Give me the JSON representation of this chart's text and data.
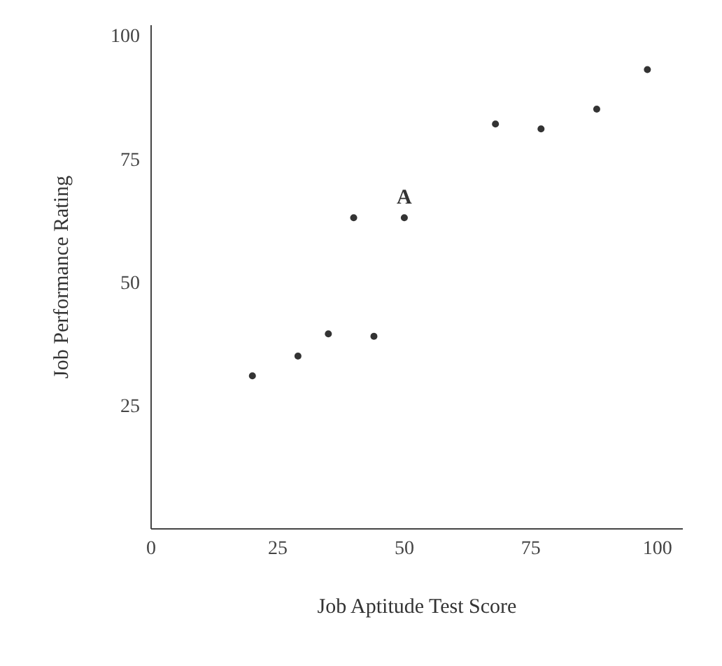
{
  "chart_data": {
    "type": "scatter",
    "xlabel": "Job Aptitude Test Score",
    "ylabel": "Job Performance Rating",
    "x": [
      20,
      29,
      35,
      40,
      44,
      50,
      68,
      77,
      88,
      98
    ],
    "series": [
      {
        "color": "#333333",
        "values": [
          31,
          35,
          39.5,
          63,
          39,
          63,
          82,
          81,
          85,
          93
        ]
      }
    ],
    "xlim": [
      0,
      105
    ],
    "ylim": [
      0,
      102
    ],
    "xticks": [
      0,
      25,
      50,
      75,
      100
    ],
    "yticks": [
      25,
      50,
      75,
      100
    ],
    "annotations": [
      {
        "text": "A",
        "x": 50,
        "y": 63
      }
    ],
    "grid": false,
    "marker": "circle"
  }
}
